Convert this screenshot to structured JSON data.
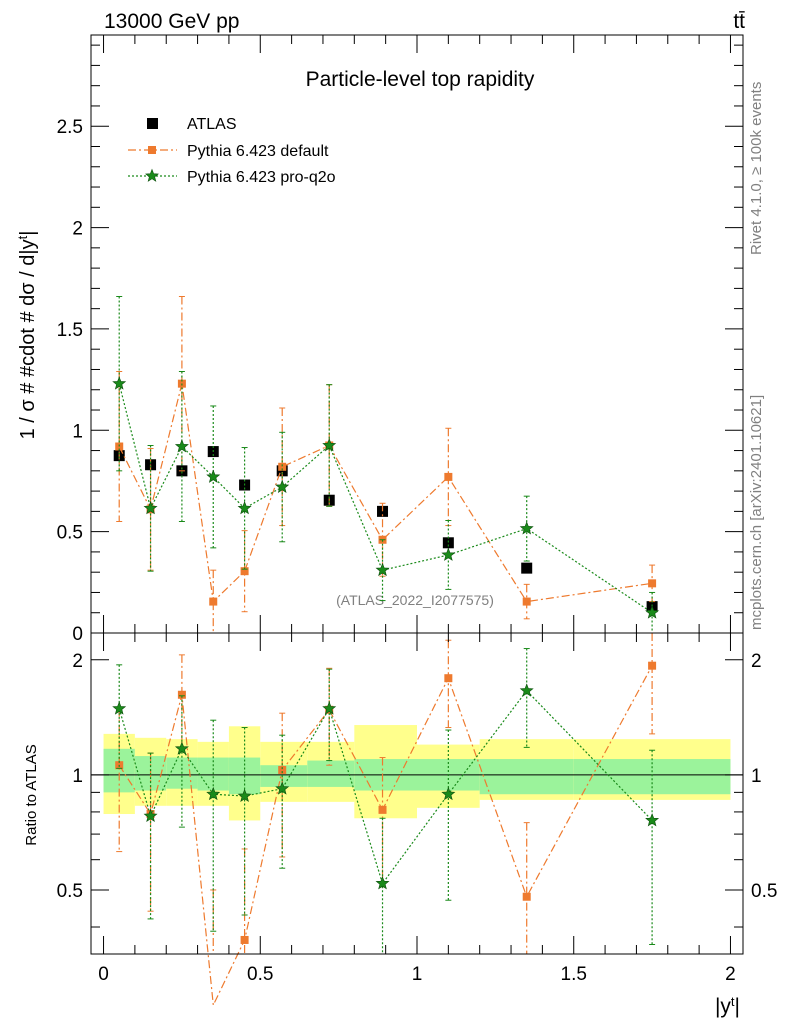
{
  "header": {
    "energy_label": "13000 GeV pp",
    "process_label": "tt̄"
  },
  "side_labels": {
    "rivet": "Rivet 4.1.0, ≥ 100k events",
    "source": "mcplots.cern.ch [arXiv:2401.10621]"
  },
  "chart_data": [
    {
      "type": "scatter",
      "title": "Particle-level top rapidity",
      "xlabel": "|y^t|",
      "ylabel": "1 / σ # #cdot # dσ / d|y^t|",
      "xlim": [
        -0.04,
        2.04
      ],
      "ylim": [
        0,
        2.95
      ],
      "yticks": [
        0,
        0.5,
        1,
        1.5,
        2,
        2.5
      ],
      "ytick_labels": [
        "0",
        "0.5",
        "1",
        "1.5",
        "2",
        "2.5"
      ],
      "watermark": "(ATLAS_2022_I2077575)",
      "legend_position": "top-left",
      "series": [
        {
          "name": "ATLAS",
          "style": "marker-only",
          "marker": "square",
          "color": "#000000",
          "x": [
            0.05,
            0.15,
            0.25,
            0.35,
            0.45,
            0.57,
            0.72,
            0.89,
            1.1,
            1.35,
            1.75
          ],
          "y": [
            0.875,
            0.83,
            0.8,
            0.895,
            0.73,
            0.8,
            0.655,
            0.6,
            0.445,
            0.32,
            0.13
          ],
          "yerr": [
            0.01,
            0.01,
            0.01,
            0.01,
            0.01,
            0.01,
            0.01,
            0.01,
            0.01,
            0.01,
            0.005
          ]
        },
        {
          "name": "Pythia 6.423 default",
          "style": "dashdot",
          "marker": "filled-square",
          "color": "#ee7a2e",
          "x": [
            0.05,
            0.15,
            0.25,
            0.35,
            0.45,
            0.57,
            0.72,
            0.89,
            1.1,
            1.35,
            1.75
          ],
          "y": [
            0.92,
            0.61,
            1.23,
            0.155,
            0.305,
            0.82,
            0.925,
            0.46,
            0.77,
            0.155,
            0.245
          ],
          "yerr": [
            0.37,
            0.3,
            0.43,
            0.155,
            0.2,
            0.29,
            0.3,
            0.18,
            0.24,
            0.085,
            0.09
          ]
        },
        {
          "name": "Pythia 6.423 pro-q2o",
          "style": "dotted",
          "marker": "star",
          "color": "#1a8a1a",
          "x": [
            0.05,
            0.15,
            0.25,
            0.35,
            0.45,
            0.57,
            0.72,
            0.89,
            1.1,
            1.35,
            1.75
          ],
          "y": [
            1.23,
            0.615,
            0.92,
            0.77,
            0.615,
            0.72,
            0.925,
            0.31,
            0.385,
            0.515,
            0.1
          ],
          "yerr": [
            0.43,
            0.31,
            0.37,
            0.35,
            0.3,
            0.27,
            0.3,
            0.15,
            0.17,
            0.16,
            0.1
          ]
        }
      ]
    },
    {
      "type": "scatter",
      "xlabel": "|y^t|",
      "ylabel": "Ratio to ATLAS",
      "xlim": [
        -0.04,
        2.04
      ],
      "ylim": [
        0.34,
        2.35
      ],
      "xticks": [
        0,
        0.5,
        1,
        1.5,
        2
      ],
      "xtick_labels": [
        "0",
        "0.5",
        "1",
        "1.5",
        "2"
      ],
      "yticks": [
        0.5,
        1,
        2
      ],
      "ytick_labels": [
        "0.5",
        "1",
        "2"
      ],
      "bins": [
        0,
        0.1,
        0.2,
        0.3,
        0.4,
        0.5,
        0.65,
        0.8,
        1.0,
        1.2,
        1.5,
        2.0
      ],
      "band_inner": [
        [
          0.9,
          1.17
        ],
        [
          0.91,
          1.12
        ],
        [
          0.92,
          1.11
        ],
        [
          0.91,
          1.11
        ],
        [
          0.89,
          1.11
        ],
        [
          0.93,
          1.06
        ],
        [
          0.93,
          1.09
        ],
        [
          0.91,
          1.1
        ],
        [
          0.91,
          1.1
        ],
        [
          0.89,
          1.1
        ],
        [
          0.89,
          1.1
        ]
      ],
      "band_outer": [
        [
          0.79,
          1.28
        ],
        [
          0.83,
          1.25
        ],
        [
          0.83,
          1.24
        ],
        [
          0.83,
          1.22
        ],
        [
          0.76,
          1.34
        ],
        [
          0.85,
          1.22
        ],
        [
          0.85,
          1.22
        ],
        [
          0.77,
          1.35
        ],
        [
          0.82,
          1.2
        ],
        [
          0.86,
          1.24
        ],
        [
          0.86,
          1.24
        ]
      ],
      "series": [
        {
          "name": "Pythia 6.423 default",
          "y": [
            1.06,
            0.79,
            1.62,
            0.25,
            0.37,
            1.03,
            1.48,
            0.81,
            1.79,
            0.48,
            1.93
          ],
          "yerr": [
            0.43,
            0.35,
            0.44,
            0.25,
            0.27,
            0.42,
            0.42,
            0.3,
            0.46,
            0.27,
            0.65
          ]
        },
        {
          "name": "Pythia 6.423 pro-q2o",
          "y": [
            1.49,
            0.78,
            1.17,
            0.89,
            0.88,
            0.92,
            1.49,
            0.52,
            0.89,
            1.66,
            0.76
          ],
          "yerr": [
            0.45,
            0.36,
            0.44,
            0.5,
            0.45,
            0.35,
            0.4,
            0.25,
            0.42,
            0.48,
            0.4
          ]
        }
      ]
    }
  ]
}
